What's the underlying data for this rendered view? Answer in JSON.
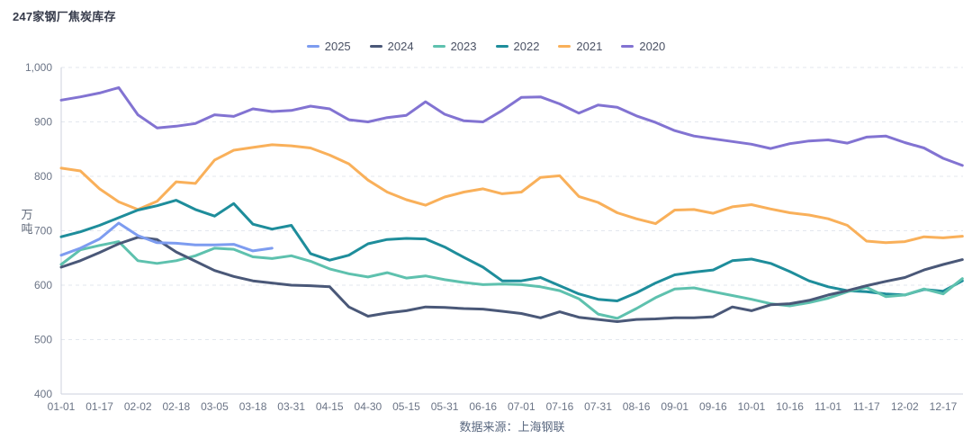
{
  "page": {
    "title": "247家钢厂焦炭库存",
    "source_note": "数据来源：上海钢联"
  },
  "chart_data": {
    "type": "line",
    "title": "247家钢厂焦炭库存",
    "ylabel": "万吨",
    "ylim": [
      400,
      1000
    ],
    "y_tick_labels": [
      "400",
      "500",
      "600",
      "700",
      "800",
      "900",
      "1,000"
    ],
    "x_tick_labels": [
      "01-01",
      "01-17",
      "02-02",
      "02-18",
      "03-05",
      "03-18",
      "03-31",
      "04-15",
      "04-30",
      "05-15",
      "05-31",
      "06-16",
      "07-01",
      "07-16",
      "07-31",
      "08-16",
      "09-01",
      "09-16",
      "10-01",
      "10-16",
      "11-01",
      "11-17",
      "12-02",
      "12-17"
    ],
    "points_per_tick": 2,
    "grid": "horizontal-dashed",
    "legend_position": "top-center",
    "colors": {
      "grid": "#e3e7ee",
      "axis": "#ccd2dc",
      "tick_text": "#6b7486",
      "legend_text": "#4a5164",
      "title_text": "#353a4a",
      "source_text": "#5a6880"
    },
    "series": [
      {
        "name": "2025",
        "color": "#7d9cf0",
        "values": [
          655,
          668,
          685,
          714,
          691,
          678,
          677,
          674,
          674,
          675,
          663,
          668
        ]
      },
      {
        "name": "2024",
        "color": "#4a5878",
        "values": [
          633,
          645,
          660,
          676,
          688,
          684,
          661,
          644,
          627,
          616,
          608,
          604,
          600,
          599,
          597,
          560,
          543,
          549,
          553,
          560,
          559,
          557,
          556,
          552,
          548,
          540,
          551,
          541,
          537,
          533,
          537,
          538,
          540,
          540,
          542,
          560,
          553,
          564,
          566,
          572,
          582,
          590,
          599,
          607,
          614,
          628,
          638,
          647
        ]
      },
      {
        "name": "2023",
        "color": "#5ec1ae",
        "values": [
          638,
          665,
          673,
          680,
          645,
          640,
          645,
          654,
          668,
          666,
          652,
          649,
          654,
          644,
          630,
          621,
          615,
          623,
          613,
          617,
          610,
          605,
          601,
          602,
          601,
          597,
          590,
          575,
          547,
          539,
          557,
          577,
          593,
          595,
          588,
          581,
          574,
          566,
          562,
          568,
          576,
          588,
          596,
          579,
          582,
          593,
          584,
          612
        ]
      },
      {
        "name": "2022",
        "color": "#1e8d9b",
        "values": [
          689,
          698,
          710,
          724,
          738,
          746,
          756,
          739,
          727,
          750,
          712,
          703,
          710,
          658,
          646,
          655,
          676,
          684,
          686,
          685,
          670,
          651,
          633,
          608,
          608,
          614,
          599,
          584,
          574,
          571,
          586,
          604,
          619,
          624,
          628,
          645,
          648,
          640,
          625,
          608,
          597,
          590,
          588,
          584,
          582,
          592,
          589,
          608
        ]
      },
      {
        "name": "2021",
        "color": "#f9b05a",
        "values": [
          815,
          810,
          777,
          753,
          739,
          754,
          790,
          787,
          830,
          848,
          853,
          858,
          856,
          852,
          839,
          823,
          793,
          771,
          757,
          747,
          762,
          771,
          777,
          768,
          771,
          798,
          801,
          763,
          752,
          733,
          722,
          713,
          738,
          739,
          732,
          744,
          748,
          740,
          733,
          729,
          722,
          710,
          681,
          678,
          680,
          689,
          687,
          690
        ]
      },
      {
        "name": "2020",
        "color": "#8273d2",
        "values": [
          940,
          946,
          953,
          963,
          913,
          889,
          892,
          897,
          913,
          910,
          924,
          919,
          921,
          929,
          924,
          904,
          900,
          908,
          912,
          937,
          914,
          902,
          900,
          921,
          945,
          946,
          933,
          916,
          931,
          927,
          911,
          899,
          884,
          874,
          869,
          864,
          859,
          851,
          860,
          865,
          867,
          861,
          872,
          874,
          862,
          852,
          833,
          820
        ]
      }
    ]
  }
}
